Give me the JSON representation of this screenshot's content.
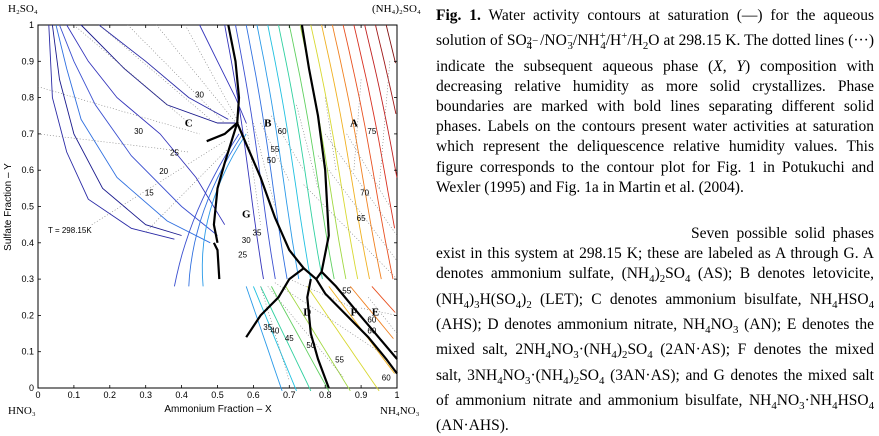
{
  "figure": {
    "corners": {
      "top_left": "H₂SO₄",
      "top_right": "(NH₄)₂SO₄",
      "bottom_left": "HNO₃",
      "bottom_right": "NH₄NO₃"
    },
    "xlabel": "Ammonium Fraction – X",
    "ylabel": "Sulfate Fraction – Y",
    "temperature_label": "T = 298.15K",
    "x_ticks": [
      "0",
      "0.1",
      "0.2",
      "0.3",
      "0.4",
      "0.5",
      "0.6",
      "0.7",
      "0.8",
      "0.9",
      "1"
    ],
    "y_ticks": [
      "0",
      "0.1",
      "0.2",
      "0.3",
      "0.4",
      "0.5",
      "0.6",
      "0.7",
      "0.8",
      "0.9",
      "1"
    ],
    "phase_labels": [
      "A",
      "B",
      "C",
      "D",
      "E",
      "F",
      "G"
    ],
    "contour_labels": [
      "30",
      "30",
      "25",
      "20",
      "15",
      "60",
      "55",
      "50",
      "75",
      "70",
      "65",
      "35",
      "30",
      "25",
      "35",
      "40",
      "45",
      "50",
      "55",
      "60",
      "55",
      "60",
      "60"
    ]
  },
  "caption": {
    "label": "Fig. 1.",
    "text_html": " Water activity contours at saturation (—) for the aqueous solution of SO<sub style=\"position:relative\"><span style=\"position:absolute;top:-0.9em;left:0\">2−</span>4</sub>&nbsp;&nbsp;/NO<sup>−</sup><sub style=\"margin-left:-0.5em\">3</sub>/NH<sup>+</sup><sub style=\"margin-left:-0.5em\">4</sub>/H<sup>+</sup>/H<sub>2</sub>O at 298.15 K. The dotted lines (···) indicate the subsequent aqueous phase (<i>X</i>, <i>Y</i>) composition with decreasing relative humidity as more solid crystallizes. Phase boundaries are marked with bold lines separating different solid phases. Labels on the contours present water activities at saturation which represent the deliquescence relative humidity values. This figure corresponds to the contour plot for Fig. 1 in Potukuchi and Wexler (1995) and Fig. 1a in Martin et al. (2004)."
  },
  "body": {
    "text_html": "Seven possible solid phases exist in this system at 298.15 K; these are labeled as A through G. A denotes ammonium sulfate, (NH<sub>4</sub>)<sub>2</sub>SO<sub>4</sub> (AS); B denotes letovicite, (NH<sub>4</sub>)<sub>3</sub>H(SO<sub>4</sub>)<sub>2</sub> (LET); C denotes ammonium bisulfate, NH<sub>4</sub>HSO<sub>4</sub> (AHS); D denotes ammonium nitrate, NH<sub>4</sub>NO<sub>3</sub> (AN); E denotes the mixed salt, 2NH<sub>4</sub>NO<sub>3</sub>·(NH<sub>4</sub>)<sub>2</sub>SO<sub>4</sub> (2AN·AS); F denotes the mixed salt, 3NH<sub>4</sub>NO<sub>3</sub>·(NH<sub>4</sub>)<sub>2</sub>SO<sub>4</sub> (3AN·AS); and G denotes the mixed salt of ammonium nitrate and ammonium bisulfate, NH<sub>4</sub>NO<sub>3</sub>·NH<sub>4</sub>HSO<sub>4</sub> (AN·AHS)."
  }
}
